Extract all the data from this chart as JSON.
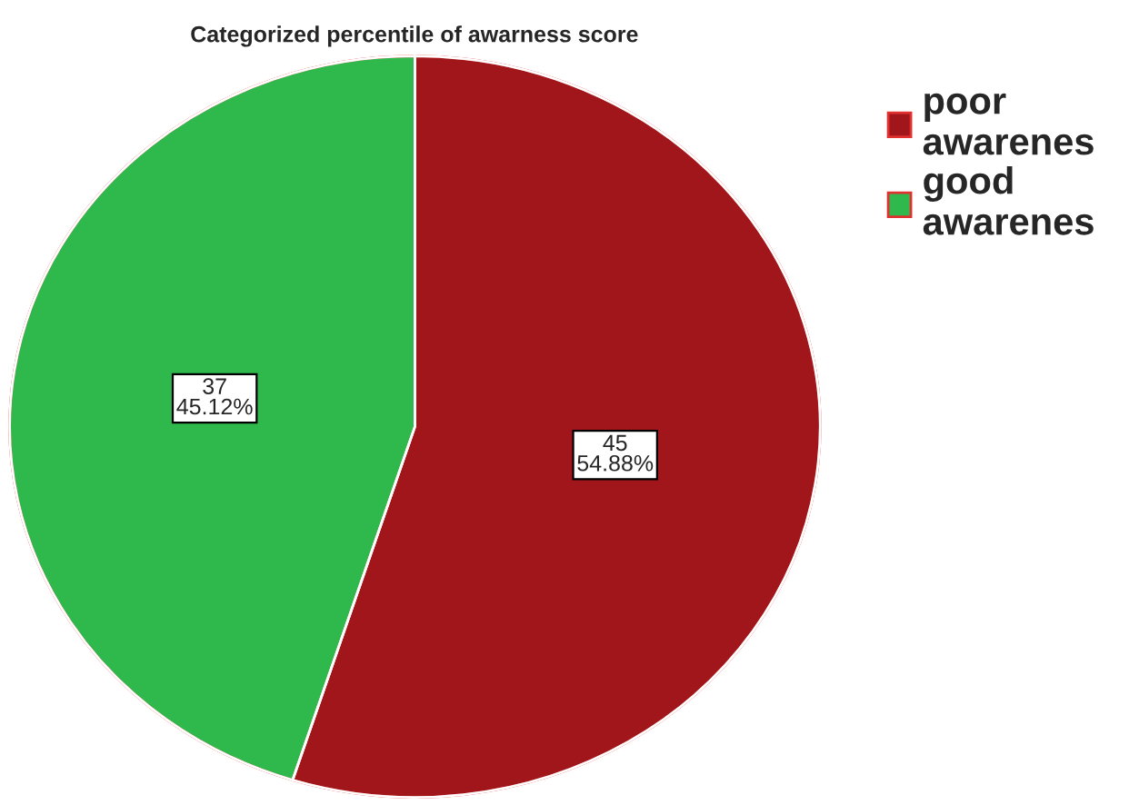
{
  "chart_data": {
    "type": "pie",
    "title": "Categorized percentile of awarness score",
    "categories": [
      "poor awarenes",
      "good awarenes"
    ],
    "values": [
      45,
      37
    ],
    "colors": [
      "#a0161b",
      "#2fb84c"
    ],
    "value_labels": [
      "45\n54.88%",
      "37\n45.12%"
    ],
    "legend": "top right"
  }
}
